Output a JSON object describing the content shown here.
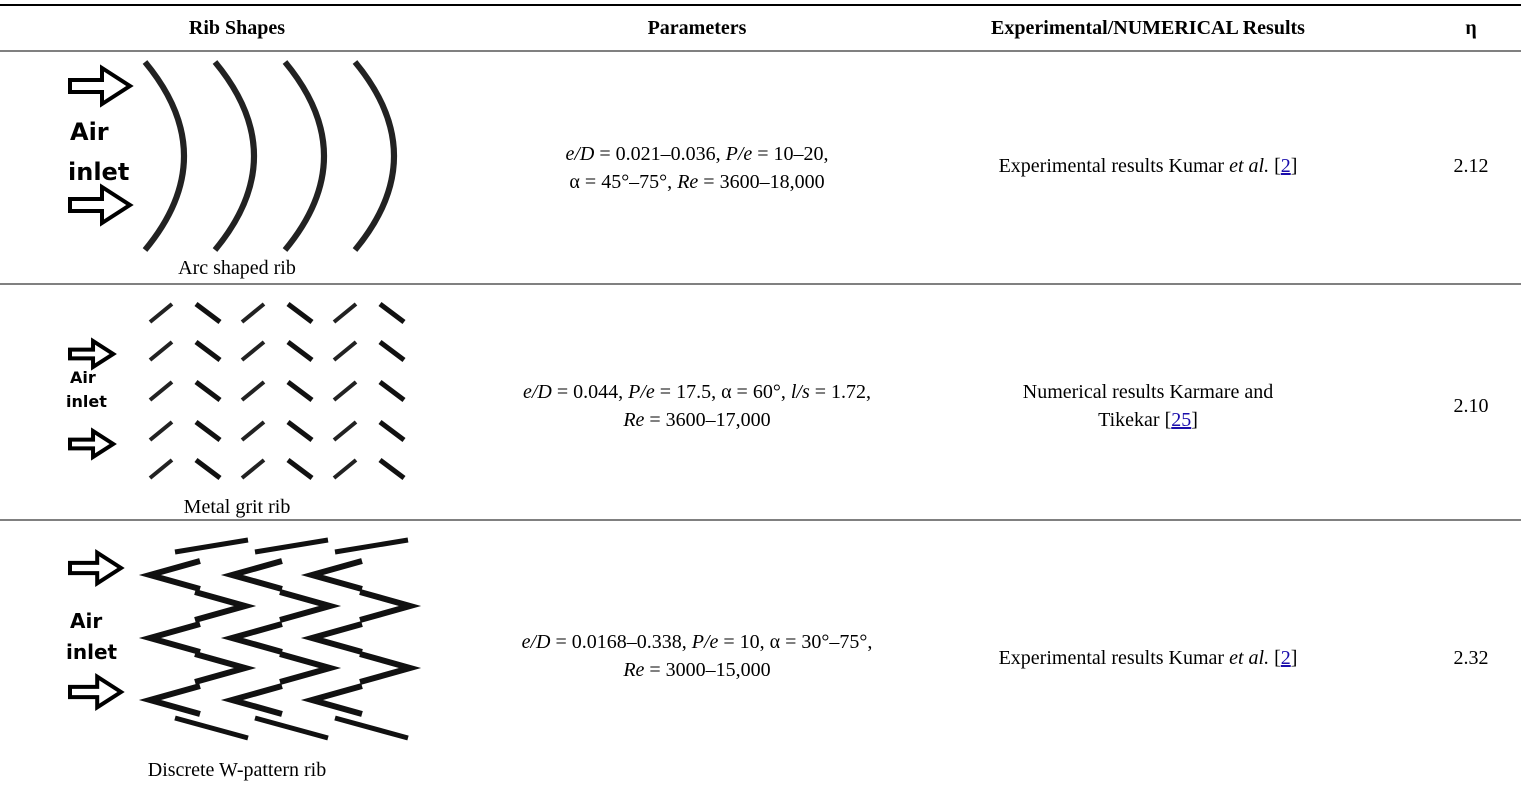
{
  "table": {
    "headers": [
      "Rib Shapes",
      "Parameters",
      "Experimental/NUMERICAL Results",
      "η"
    ],
    "rows": [
      {
        "image_text": [
          "Air",
          "inlet"
        ],
        "shape": "Arc shaped rib",
        "params": [
          "e/D",
          " = 0.021–0.036, ",
          "P/e",
          " = 10–20,",
          "α = 45°–75°, ",
          "Re",
          " = 3600–18,000"
        ],
        "results": [
          "Experimental results Kumar ",
          "et al.",
          " [",
          "2",
          "]"
        ],
        "eta": "2.12"
      },
      {
        "image_text": [
          "Air",
          "inlet"
        ],
        "shape": "Metal grit rib",
        "params": [
          "e/D",
          " = 0.044, ",
          "P/e",
          " = 17.5, α = 60°, ",
          "l/s",
          " = 1.72,",
          "Re",
          " = 3600–17,000"
        ],
        "results": [
          "Numerical results Karmare and",
          "Tikekar [",
          "25",
          "]"
        ],
        "eta": "2.10"
      },
      {
        "image_text": [
          "Air",
          "inlet"
        ],
        "shape": "Discrete W-pattern rib",
        "params": [
          "e/D",
          " = 0.0168–0.338, ",
          "P/e",
          " = 10, α = 30°–75°,",
          "Re",
          " = 3000–15,000"
        ],
        "results": [
          "Experimental results Kumar ",
          "et al.",
          " [",
          "2",
          "]"
        ],
        "eta": "2.32"
      }
    ]
  }
}
